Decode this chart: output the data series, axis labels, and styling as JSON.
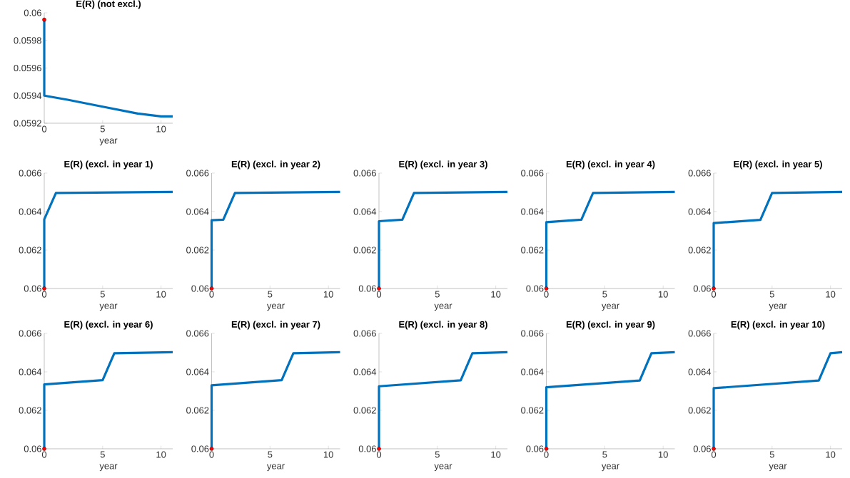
{
  "chart_data": [
    {
      "type": "line",
      "title": "E(R) (not excl.)",
      "xlabel": "year",
      "xlim": [
        0,
        11
      ],
      "xticks": [
        0,
        5,
        10
      ],
      "ylim": [
        0.0592,
        0.06
      ],
      "yticks": [
        0.0592,
        0.0594,
        0.0596,
        0.0598,
        0.06
      ],
      "series": [
        {
          "color": "#0072bd",
          "x": [
            0,
            0,
            2,
            5,
            8,
            10,
            11
          ],
          "values": [
            0.05995,
            0.0594,
            0.05937,
            0.05932,
            0.05927,
            0.05925,
            0.05925
          ]
        },
        {
          "type": "scatter",
          "color": "#ff0000",
          "x": [
            0
          ],
          "values": [
            0.05995
          ]
        }
      ]
    },
    {
      "type": "line",
      "title": "E(R) (excl. in year 1)",
      "xlabel": "year",
      "xlim": [
        0,
        11
      ],
      "xticks": [
        0,
        5,
        10
      ],
      "ylim": [
        0.06,
        0.066
      ],
      "yticks": [
        0.06,
        0.062,
        0.064,
        0.066
      ],
      "series": [
        {
          "color": "#0072bd",
          "x": [
            0,
            0,
            1,
            11
          ],
          "values": [
            0.06,
            0.0636,
            0.06497,
            0.06502
          ]
        },
        {
          "type": "scatter",
          "color": "#ff0000",
          "x": [
            0
          ],
          "values": [
            0.06
          ]
        }
      ]
    },
    {
      "type": "line",
      "title": "E(R) (excl. in year 2)",
      "xlabel": "year",
      "xlim": [
        0,
        11
      ],
      "xticks": [
        0,
        5,
        10
      ],
      "ylim": [
        0.06,
        0.066
      ],
      "yticks": [
        0.06,
        0.062,
        0.064,
        0.066
      ],
      "series": [
        {
          "color": "#0072bd",
          "x": [
            0,
            0,
            1,
            2,
            11
          ],
          "values": [
            0.06,
            0.06355,
            0.06358,
            0.06497,
            0.06502
          ]
        },
        {
          "type": "scatter",
          "color": "#ff0000",
          "x": [
            0
          ],
          "values": [
            0.06
          ]
        }
      ]
    },
    {
      "type": "line",
      "title": "E(R) (excl. in year 3)",
      "xlabel": "year",
      "xlim": [
        0,
        11
      ],
      "xticks": [
        0,
        5,
        10
      ],
      "ylim": [
        0.06,
        0.066
      ],
      "yticks": [
        0.06,
        0.062,
        0.064,
        0.066
      ],
      "series": [
        {
          "color": "#0072bd",
          "x": [
            0,
            0,
            2,
            3,
            11
          ],
          "values": [
            0.06,
            0.0635,
            0.06358,
            0.06497,
            0.06502
          ]
        },
        {
          "type": "scatter",
          "color": "#ff0000",
          "x": [
            0
          ],
          "values": [
            0.06
          ]
        }
      ]
    },
    {
      "type": "line",
      "title": "E(R) (excl. in year 4)",
      "xlabel": "year",
      "xlim": [
        0,
        11
      ],
      "xticks": [
        0,
        5,
        10
      ],
      "ylim": [
        0.06,
        0.066
      ],
      "yticks": [
        0.06,
        0.062,
        0.064,
        0.066
      ],
      "series": [
        {
          "color": "#0072bd",
          "x": [
            0,
            0,
            3,
            4,
            11
          ],
          "values": [
            0.06,
            0.06345,
            0.06358,
            0.06497,
            0.06502
          ]
        },
        {
          "type": "scatter",
          "color": "#ff0000",
          "x": [
            0
          ],
          "values": [
            0.06
          ]
        }
      ]
    },
    {
      "type": "line",
      "title": "E(R) (excl. in year 5)",
      "xlabel": "year",
      "xlim": [
        0,
        11
      ],
      "xticks": [
        0,
        5,
        10
      ],
      "ylim": [
        0.06,
        0.066
      ],
      "yticks": [
        0.06,
        0.062,
        0.064,
        0.066
      ],
      "series": [
        {
          "color": "#0072bd",
          "x": [
            0,
            0,
            4,
            5,
            11
          ],
          "values": [
            0.06,
            0.0634,
            0.06357,
            0.06497,
            0.06502
          ]
        },
        {
          "type": "scatter",
          "color": "#ff0000",
          "x": [
            0
          ],
          "values": [
            0.06
          ]
        }
      ]
    },
    {
      "type": "line",
      "title": "E(R) (excl. in year 6)",
      "xlabel": "year",
      "xlim": [
        0,
        11
      ],
      "xticks": [
        0,
        5,
        10
      ],
      "ylim": [
        0.06,
        0.066
      ],
      "yticks": [
        0.06,
        0.062,
        0.064,
        0.066
      ],
      "series": [
        {
          "color": "#0072bd",
          "x": [
            0,
            0,
            5,
            6,
            11
          ],
          "values": [
            0.06,
            0.06335,
            0.06357,
            0.06497,
            0.06502
          ]
        },
        {
          "type": "scatter",
          "color": "#ff0000",
          "x": [
            0
          ],
          "values": [
            0.06
          ]
        }
      ]
    },
    {
      "type": "line",
      "title": "E(R) (excl. in year 7)",
      "xlabel": "year",
      "xlim": [
        0,
        11
      ],
      "xticks": [
        0,
        5,
        10
      ],
      "ylim": [
        0.06,
        0.066
      ],
      "yticks": [
        0.06,
        0.062,
        0.064,
        0.066
      ],
      "series": [
        {
          "color": "#0072bd",
          "x": [
            0,
            0,
            6,
            7,
            11
          ],
          "values": [
            0.06,
            0.0633,
            0.06357,
            0.06497,
            0.06502
          ]
        },
        {
          "type": "scatter",
          "color": "#ff0000",
          "x": [
            0
          ],
          "values": [
            0.06
          ]
        }
      ]
    },
    {
      "type": "line",
      "title": "E(R) (excl. in year 8)",
      "xlabel": "year",
      "xlim": [
        0,
        11
      ],
      "xticks": [
        0,
        5,
        10
      ],
      "ylim": [
        0.06,
        0.066
      ],
      "yticks": [
        0.06,
        0.062,
        0.064,
        0.066
      ],
      "series": [
        {
          "color": "#0072bd",
          "x": [
            0,
            0,
            7,
            8,
            11
          ],
          "values": [
            0.06,
            0.06325,
            0.06356,
            0.06497,
            0.06502
          ]
        },
        {
          "type": "scatter",
          "color": "#ff0000",
          "x": [
            0
          ],
          "values": [
            0.06
          ]
        }
      ]
    },
    {
      "type": "line",
      "title": "E(R) (excl. in year 9)",
      "xlabel": "year",
      "xlim": [
        0,
        11
      ],
      "xticks": [
        0,
        5,
        10
      ],
      "ylim": [
        0.06,
        0.066
      ],
      "yticks": [
        0.06,
        0.062,
        0.064,
        0.066
      ],
      "series": [
        {
          "color": "#0072bd",
          "x": [
            0,
            0,
            8,
            9,
            11
          ],
          "values": [
            0.06,
            0.0632,
            0.06355,
            0.06497,
            0.06502
          ]
        },
        {
          "type": "scatter",
          "color": "#ff0000",
          "x": [
            0
          ],
          "values": [
            0.06
          ]
        }
      ]
    },
    {
      "type": "line",
      "title": "E(R) (excl. in year 10)",
      "xlabel": "year",
      "xlim": [
        0,
        11
      ],
      "xticks": [
        0,
        5,
        10
      ],
      "ylim": [
        0.06,
        0.066
      ],
      "yticks": [
        0.06,
        0.062,
        0.064,
        0.066
      ],
      "series": [
        {
          "color": "#0072bd",
          "x": [
            0,
            0,
            9,
            10,
            11
          ],
          "values": [
            0.06,
            0.06315,
            0.06355,
            0.06497,
            0.06502
          ]
        },
        {
          "type": "scatter",
          "color": "#ff0000",
          "x": [
            0
          ],
          "values": [
            0.06
          ]
        }
      ]
    }
  ]
}
